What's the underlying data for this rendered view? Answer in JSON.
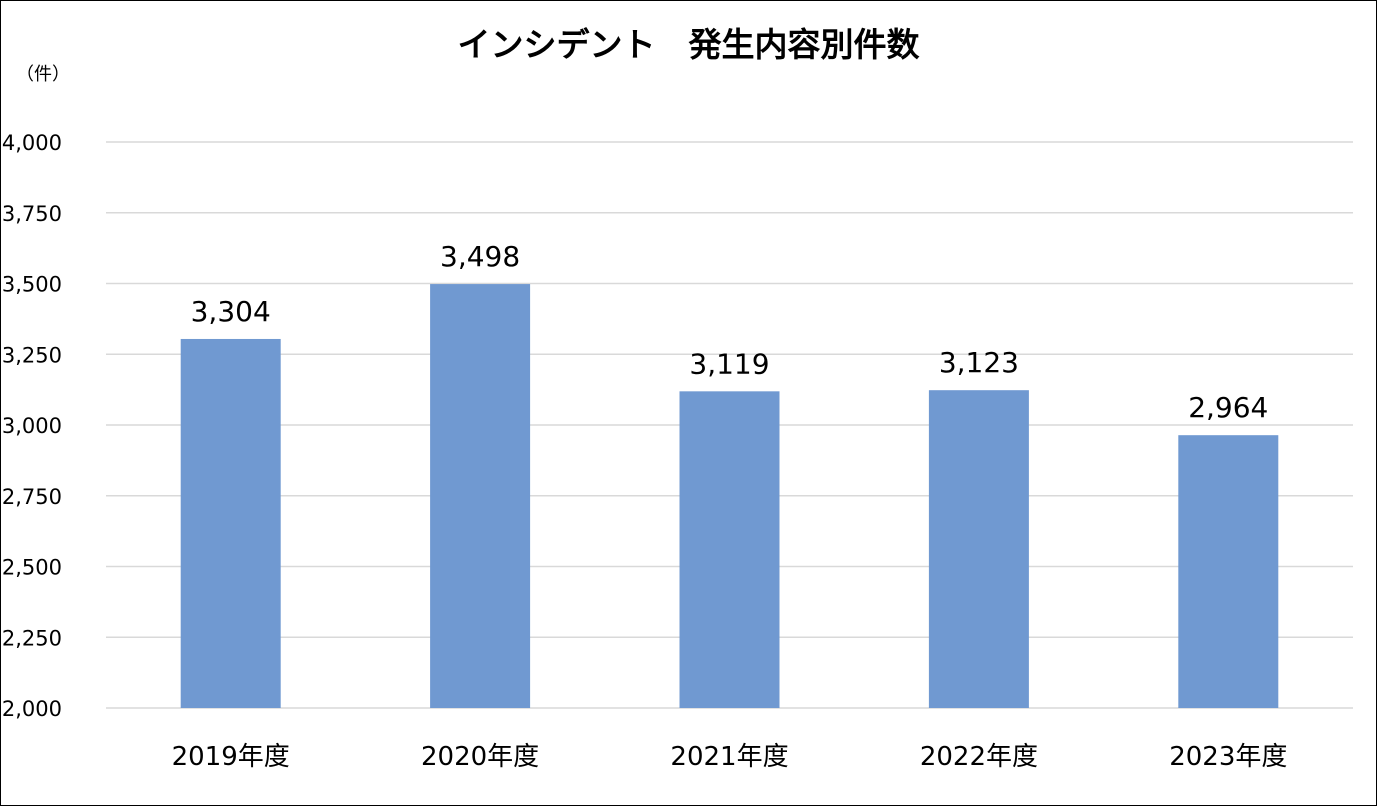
{
  "chart_data": {
    "type": "bar",
    "title": "インシデント　発生内容別件数",
    "ylabel": "（件）",
    "xlabel": "",
    "categories": [
      "2019年度",
      "2020年度",
      "2021年度",
      "2022年度",
      "2023年度"
    ],
    "values": [
      3304,
      3498,
      3119,
      3123,
      2964
    ],
    "data_labels": [
      "3,304",
      "3,498",
      "3,119",
      "3,123",
      "2,964"
    ],
    "ylim": [
      2000,
      4000
    ],
    "yticks": [
      2000,
      2250,
      2500,
      2750,
      3000,
      3250,
      3500,
      3750,
      4000
    ],
    "ytick_labels": [
      "2,000",
      "2,250",
      "2,500",
      "2,750",
      "3,000",
      "3,250",
      "3,500",
      "3,750",
      "4,000"
    ],
    "grid": true,
    "legend": "none",
    "bar_color": "#7099d1",
    "grid_color": "#d9d9d9"
  }
}
